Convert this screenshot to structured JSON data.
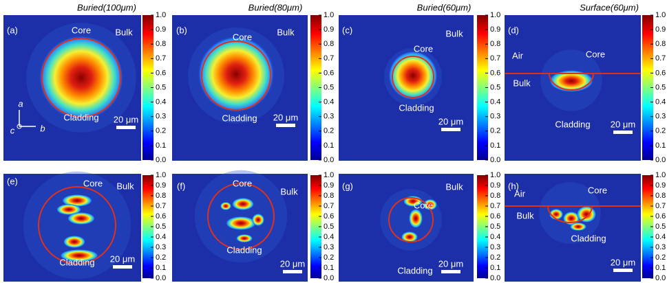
{
  "columns": [
    "Buried(100μm)",
    "Buried(80μm)",
    "Buried(60μm)",
    "Surface(60μm)"
  ],
  "panels": [
    {
      "label": "(a)",
      "texts": [
        "Core",
        "Bulk",
        "Cladding"
      ],
      "scale": "20 μm",
      "axes": [
        "a",
        "b",
        "c"
      ]
    },
    {
      "label": "(b)",
      "texts": [
        "Core",
        "Bulk",
        "Cladding"
      ],
      "scale": "20 μm"
    },
    {
      "label": "(c)",
      "texts": [
        "Core",
        "Bulk",
        "Cladding"
      ],
      "scale": "20 μm"
    },
    {
      "label": "(d)",
      "texts": [
        "Air",
        "Core",
        "Bulk",
        "Cladding"
      ],
      "scale": "20 μm"
    },
    {
      "label": "(e)",
      "texts": [
        "Core",
        "Bulk",
        "Cladding"
      ],
      "scale": "20 μm"
    },
    {
      "label": "(f)",
      "texts": [
        "Core",
        "Bulk",
        "Cladding"
      ],
      "scale": "20 μm"
    },
    {
      "label": "(g)",
      "texts": [
        "Core",
        "Bulk",
        "Cladding"
      ],
      "scale": "20 μm"
    },
    {
      "label": "(h)",
      "texts": [
        "Air",
        "Core",
        "Bulk",
        "Cladding"
      ],
      "scale": "20 μm"
    }
  ],
  "colorbar": {
    "ticks": [
      {
        "value": 0,
        "label": "0.0"
      },
      {
        "value": 0.1,
        "label": "0.1"
      },
      {
        "value": 0.2,
        "label": "0.2"
      },
      {
        "value": 0.3,
        "label": "0.3"
      },
      {
        "value": 0.4,
        "label": "0.4"
      },
      {
        "value": 0.5,
        "label": "0.5"
      },
      {
        "value": 0.6,
        "label": "0.6"
      },
      {
        "value": 0.7,
        "label": "0.7"
      },
      {
        "value": 0.8,
        "label": "0.8"
      },
      {
        "value": 0.9,
        "label": "0.9"
      },
      {
        "value": 1,
        "label": "1.0"
      }
    ]
  }
}
